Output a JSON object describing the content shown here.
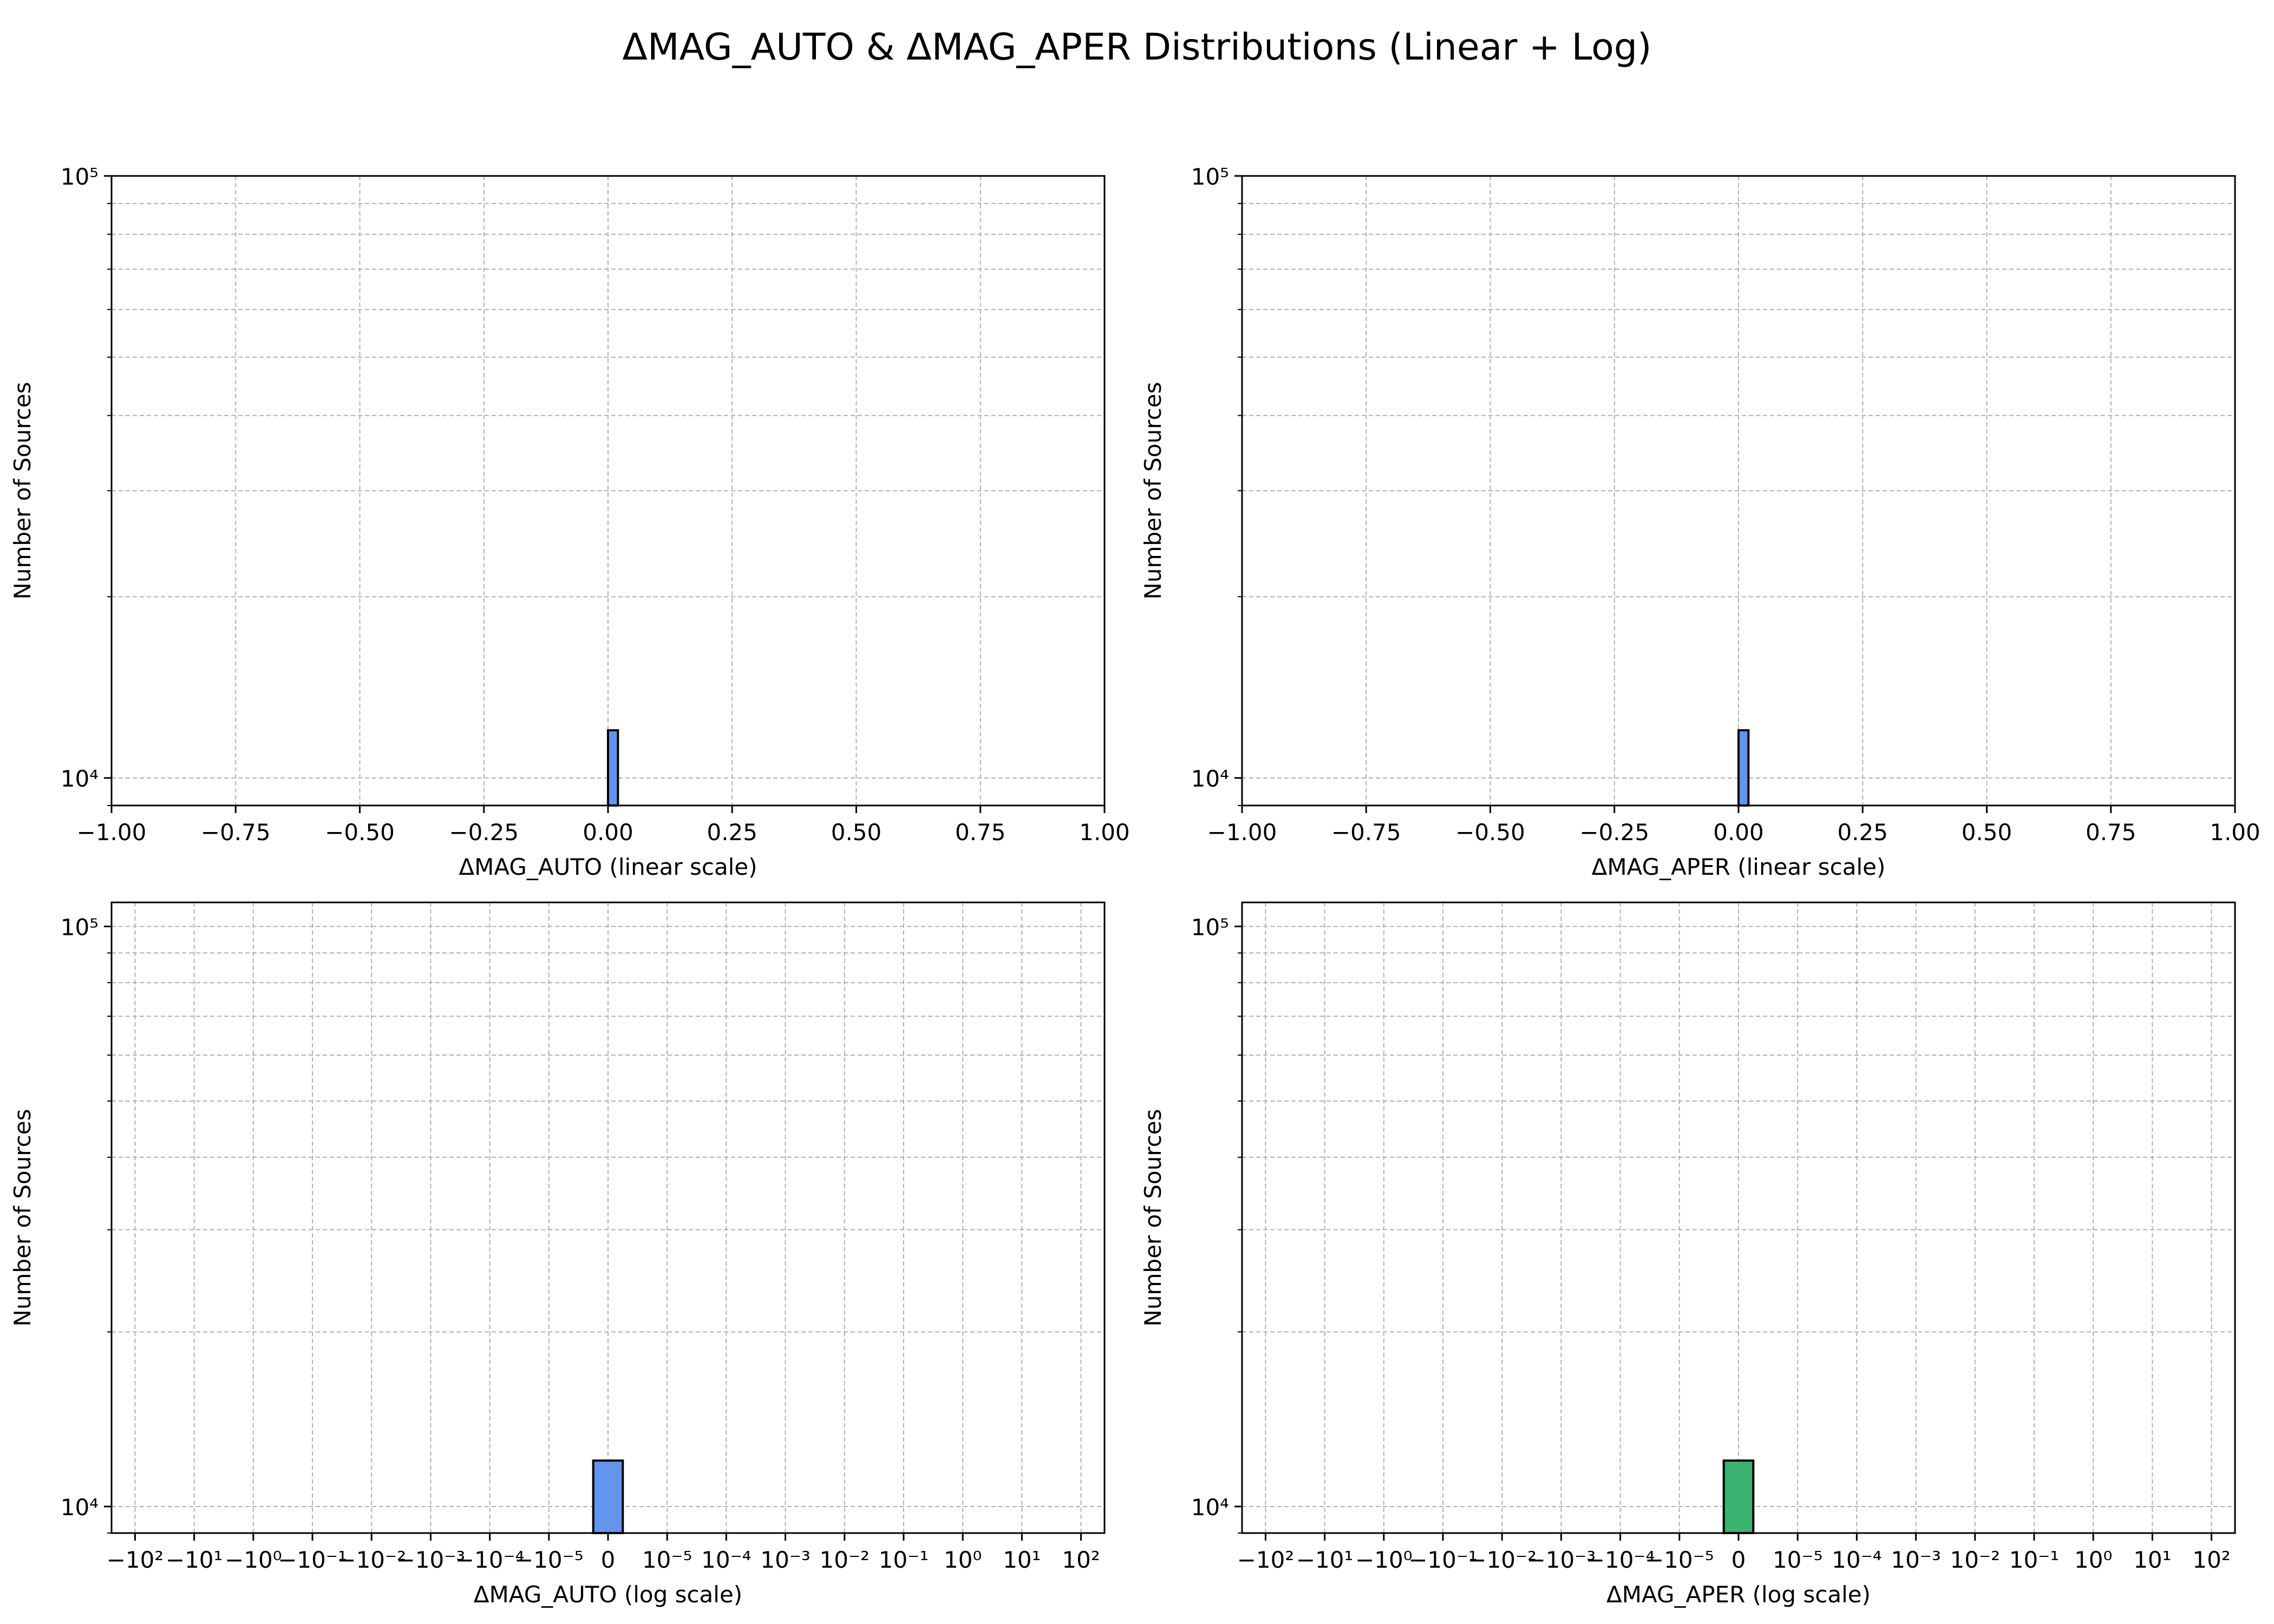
{
  "figure": {
    "title": "ΔMAG_AUTO & ΔMAG_APER Distributions (Linear + Log)"
  },
  "chart_data": [
    {
      "type": "bar",
      "panel": "top-left",
      "xlabel": "ΔMAG_AUTO (linear scale)",
      "ylabel": "Number of Sources",
      "xscale": "linear",
      "yscale": "log",
      "xlim": [
        -1.0,
        1.0
      ],
      "ylim": [
        9000,
        100000
      ],
      "xticks": [
        -1.0,
        -0.75,
        -0.5,
        -0.25,
        0.0,
        0.25,
        0.5,
        0.75,
        1.0
      ],
      "xtick_labels": [
        "−1.00",
        "−0.75",
        "−0.50",
        "−0.25",
        "0.00",
        "0.25",
        "0.50",
        "0.75",
        "1.00"
      ],
      "yticks": [
        10000,
        100000
      ],
      "grid": true,
      "bars": [
        {
          "x0": 0.0,
          "x1": 0.02,
          "count": 12000
        }
      ],
      "color": "#6495ED"
    },
    {
      "type": "bar",
      "panel": "top-right",
      "xlabel": "ΔMAG_APER (linear scale)",
      "ylabel": "Number of Sources",
      "xscale": "linear",
      "yscale": "log",
      "xlim": [
        -1.0,
        1.0
      ],
      "ylim": [
        9000,
        100000
      ],
      "xticks": [
        -1.0,
        -0.75,
        -0.5,
        -0.25,
        0.0,
        0.25,
        0.5,
        0.75,
        1.0
      ],
      "xtick_labels": [
        "−1.00",
        "−0.75",
        "−0.50",
        "−0.25",
        "0.00",
        "0.25",
        "0.50",
        "0.75",
        "1.00"
      ],
      "yticks": [
        10000,
        100000
      ],
      "grid": true,
      "bars": [
        {
          "x0": 0.0,
          "x1": 0.02,
          "count": 12000
        }
      ],
      "color": "#6495ED"
    },
    {
      "type": "bar",
      "panel": "bottom-left",
      "xlabel": "ΔMAG_AUTO (log scale)",
      "ylabel": "Number of Sources",
      "xscale": "symlog",
      "yscale": "log",
      "xlim": [
        -250,
        250
      ],
      "ylim": [
        9000,
        110000
      ],
      "xticks": [
        -100,
        -10,
        -1,
        -0.1,
        -0.01,
        -0.001,
        -0.0001,
        -1e-05,
        0,
        1e-05,
        0.0001,
        0.001,
        0.01,
        0.1,
        1,
        10,
        100
      ],
      "yticks": [
        10000,
        100000
      ],
      "grid": true,
      "bars": [
        {
          "x0": -2.5e-06,
          "x1": 2.5e-06,
          "count": 12000
        }
      ],
      "color": "#6495ED"
    },
    {
      "type": "bar",
      "panel": "bottom-right",
      "xlabel": "ΔMAG_APER (log scale)",
      "ylabel": "Number of Sources",
      "xscale": "symlog",
      "yscale": "log",
      "xlim": [
        -250,
        250
      ],
      "ylim": [
        9000,
        110000
      ],
      "xticks": [
        -100,
        -10,
        -1,
        -0.1,
        -0.01,
        -0.001,
        -0.0001,
        -1e-05,
        0,
        1e-05,
        0.0001,
        0.001,
        0.01,
        0.1,
        1,
        10,
        100
      ],
      "yticks": [
        10000,
        100000
      ],
      "grid": true,
      "bars": [
        {
          "x0": -2.5e-06,
          "x1": 2.5e-06,
          "count": 12000
        }
      ],
      "color": "#3CB371"
    }
  ]
}
